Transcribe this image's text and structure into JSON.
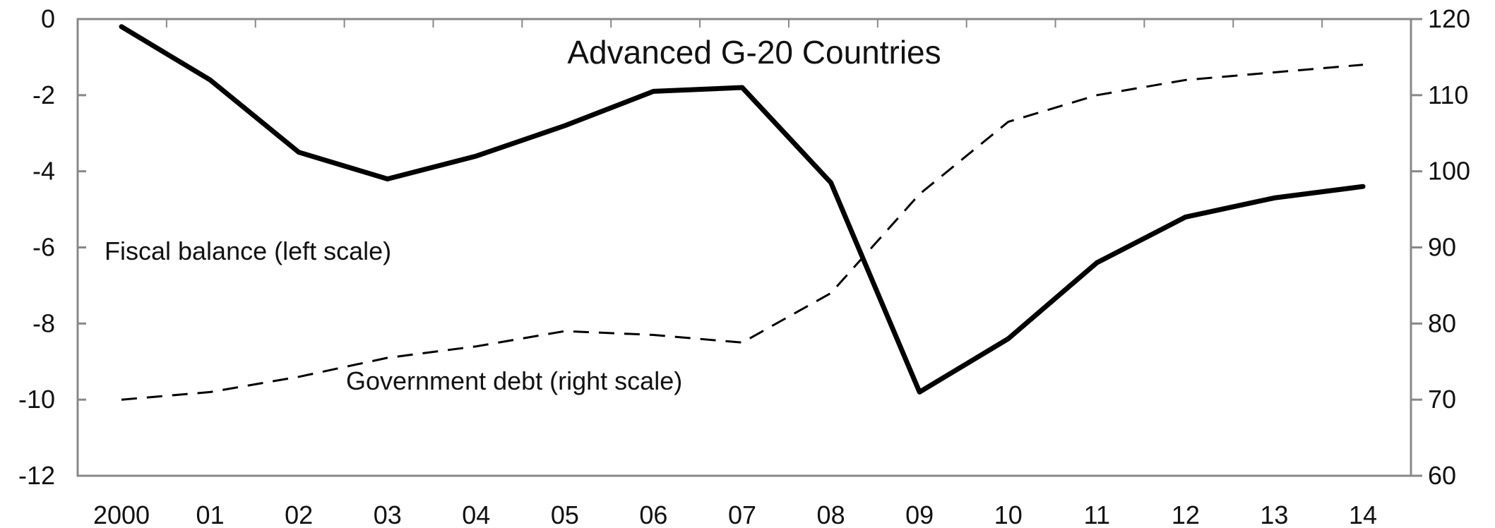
{
  "chart_data": {
    "type": "line",
    "title": "Advanced G-20 Countries",
    "categories": [
      "2000",
      "01",
      "02",
      "03",
      "04",
      "05",
      "06",
      "07",
      "08",
      "09",
      "10",
      "11",
      "12",
      "13",
      "14"
    ],
    "left_axis": {
      "ylim": [
        -12,
        0
      ],
      "ticks": [
        "0",
        "-2",
        "-4",
        "-6",
        "-8",
        "-10",
        "-12"
      ]
    },
    "right_axis": {
      "ylim": [
        60,
        120
      ],
      "ticks": [
        "120",
        "110",
        "100",
        "90",
        "80",
        "70",
        "60"
      ]
    },
    "series": [
      {
        "name": "Fiscal balance (left scale)",
        "axis": "left",
        "style": "solid",
        "color": "#000000",
        "values": [
          -0.2,
          -1.6,
          -3.5,
          -4.2,
          -3.6,
          -2.8,
          -1.9,
          -1.8,
          -4.3,
          -9.8,
          -8.4,
          -6.4,
          -5.2,
          -4.7,
          -4.4
        ]
      },
      {
        "name": "Government debt (right scale)",
        "axis": "right",
        "style": "dashed",
        "color": "#000000",
        "values": [
          70,
          71,
          73,
          75.5,
          77,
          79,
          78.5,
          77.5,
          84,
          97,
          106.5,
          110,
          112,
          113,
          114
        ]
      }
    ],
    "grid": false,
    "legend": "inline annotations"
  }
}
